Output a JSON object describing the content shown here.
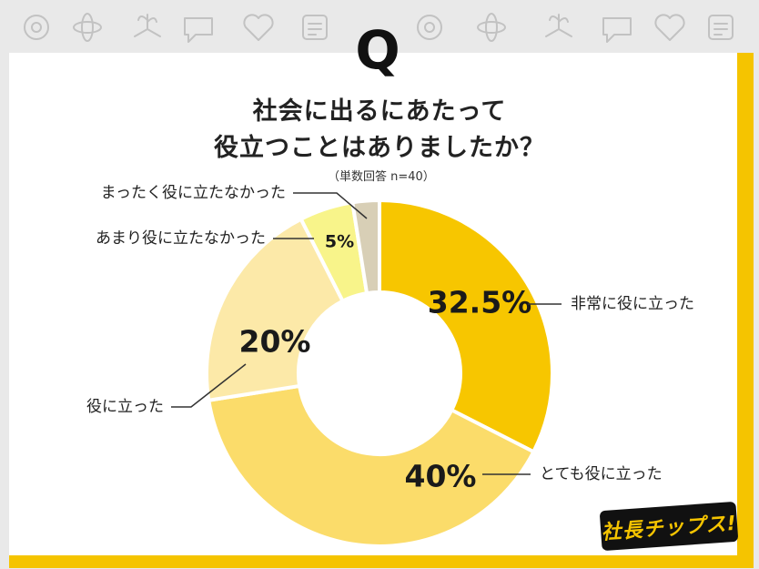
{
  "header": {
    "q_mark": "Q",
    "icons": [
      "gear-cluster-icon",
      "atom-icon",
      "hand-plant-icon",
      "speech-bubble-icon",
      "brain-icon",
      "heart-hand-icon",
      "person-question-icon",
      "checklist-person-icon",
      "podium-person-icon",
      "hand-grid-icon",
      "heart-icon",
      "thumbs-up-icon"
    ]
  },
  "title_line1": "社会に出るにあたって",
  "title_line2": "役立つことはありましたか？",
  "sample_note": "（単数回答 n=40）",
  "logo_text": "社長チップス!",
  "colors": {
    "accent": "#f5c400",
    "slice_1": "#f7c600",
    "slice_2": "#fbdc6a",
    "slice_3": "#fce9a8",
    "slice_4": "#f8f48a",
    "slice_5": "#d8cfb6"
  },
  "chart_data": {
    "type": "pie",
    "donut": true,
    "start_angle_deg": 0,
    "direction": "clockwise",
    "title": "役立つことはありましたか？",
    "slices": [
      {
        "label": "非常に役に立った",
        "value": 32.5,
        "display": "32.5%"
      },
      {
        "label": "とても役に立った",
        "value": 40,
        "display": "40%"
      },
      {
        "label": "役に立った",
        "value": 20,
        "display": "20%"
      },
      {
        "label": "あまり役に立たなかった",
        "value": 5,
        "display": "5%"
      },
      {
        "label": "まったく役に立たなかった",
        "value": 2.5,
        "display": ""
      }
    ]
  }
}
